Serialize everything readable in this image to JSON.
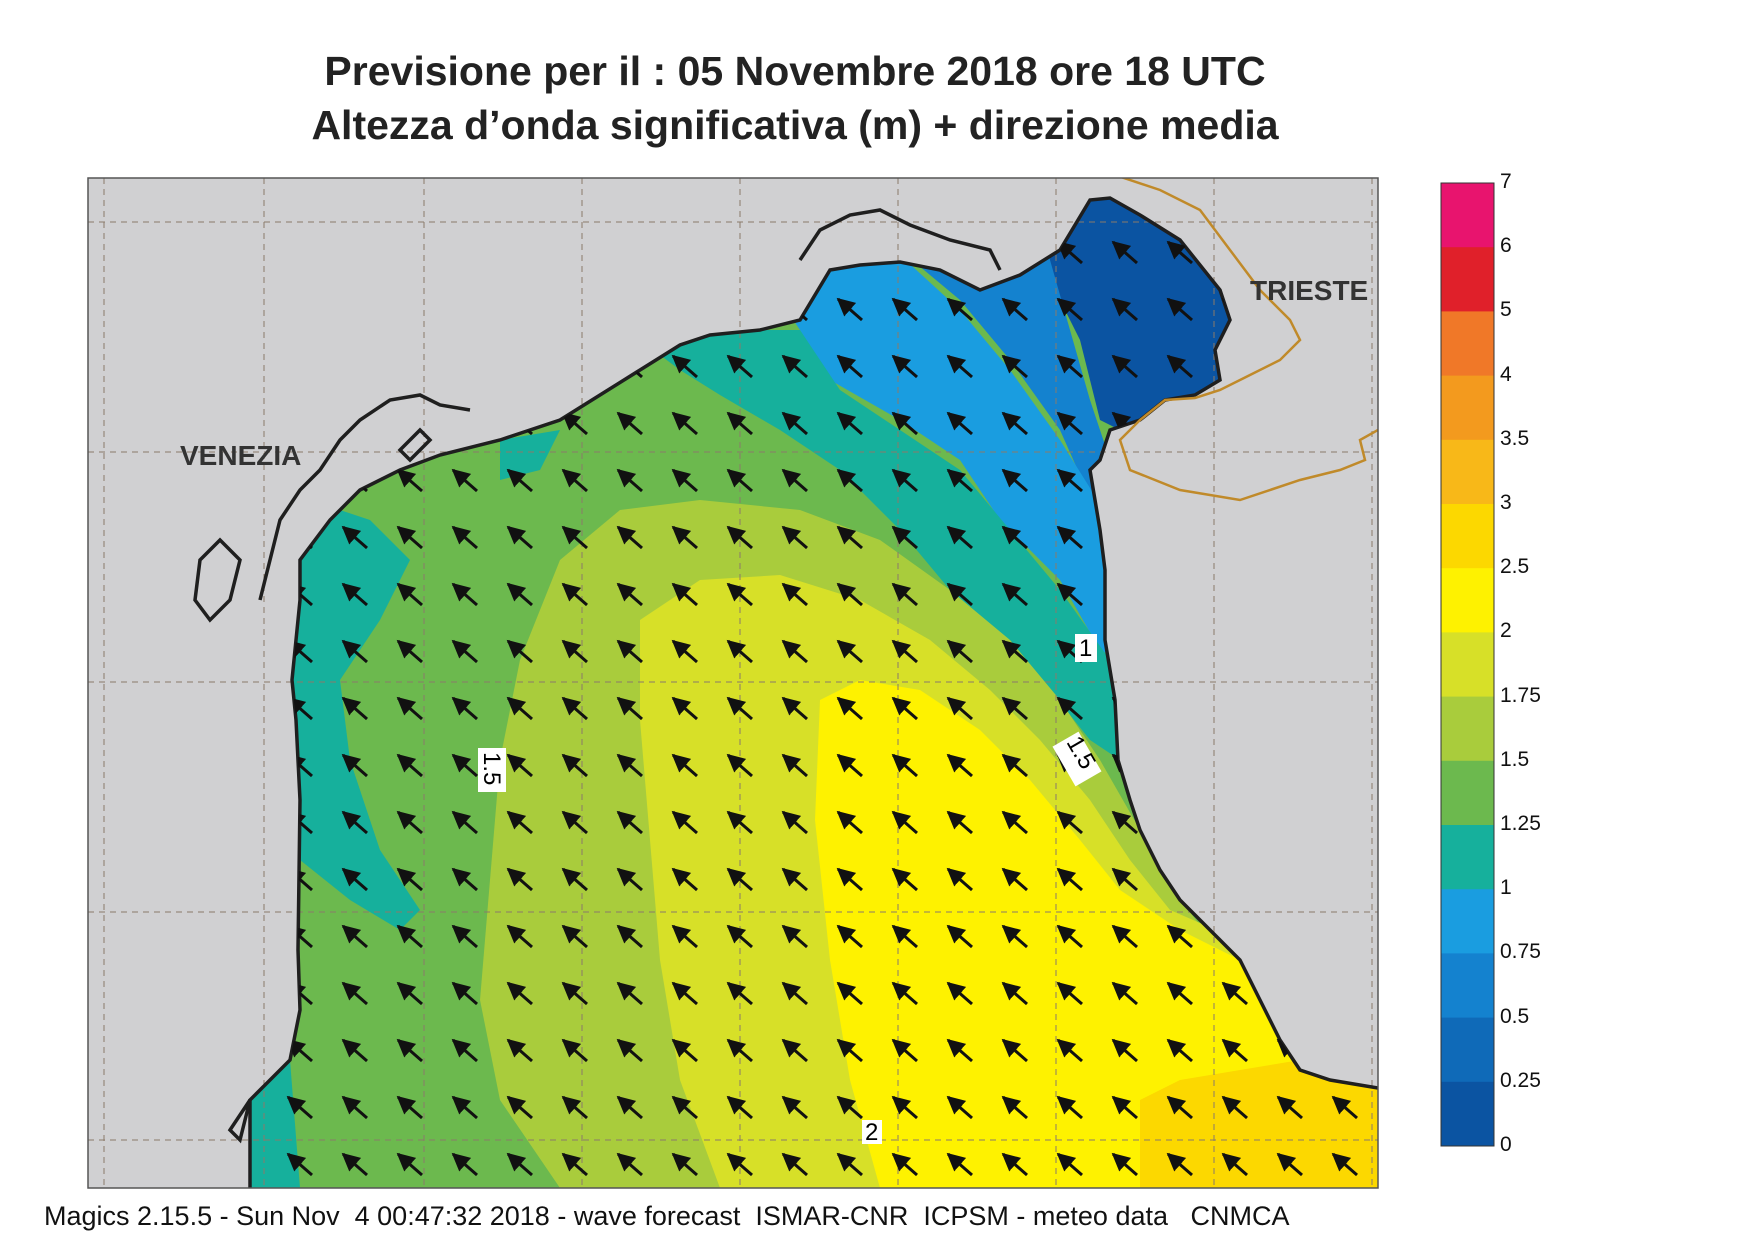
{
  "title": {
    "line1": "Previsione per il  :  05 Novembre  2018   ore 18 UTC",
    "line2": "Altezza d’onda significativa (m) + direzione media"
  },
  "places": {
    "venezia": "VENEZIA",
    "trieste": "TRIESTE"
  },
  "contour_labels": {
    "c1": "1",
    "c15a": "1.5",
    "c15b": "1.5",
    "c2": "2"
  },
  "colorbar": {
    "labels": [
      "7",
      "6",
      "5",
      "4",
      "3.5",
      "3",
      "2.5",
      "2",
      "1.75",
      "1.5",
      "1.25",
      "1",
      "0.75",
      "0.5",
      "0.25",
      "0"
    ],
    "colors": [
      "#e8146e",
      "#e0202a",
      "#f07828",
      "#f39a1e",
      "#f8b818",
      "#fcd800",
      "#fef200",
      "#d7e028",
      "#a9cc3c",
      "#6cb94e",
      "#16b09c",
      "#1a9de0",
      "#1482cf",
      "#0f6ab8",
      "#0b54a2"
    ]
  },
  "colors": {
    "land": "#d0d0d2",
    "coast": "#1f1f1f",
    "border": "#c08a2a",
    "grid": "#8a7a6a"
  },
  "footer": "Magics 2.15.5 - Sun Nov  4 00:47:32 2018 - wave forecast  ISMAR-CNR  ICPSM - meteo data   CNMCA"
}
